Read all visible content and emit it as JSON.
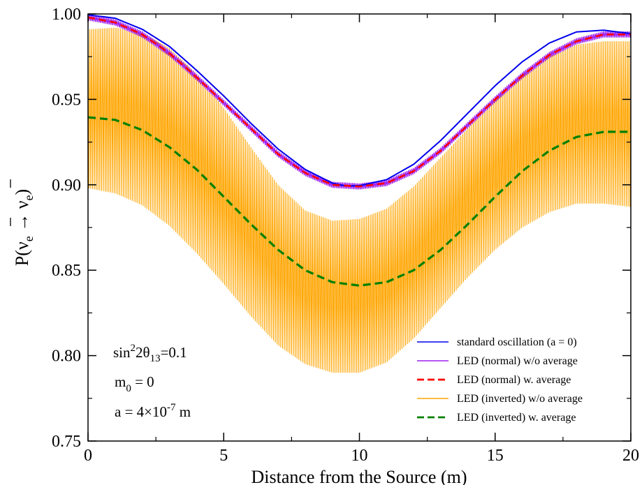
{
  "chart_data": {
    "type": "line",
    "title": "",
    "xlabel": "Distance from the Source (m)",
    "ylabel": {
      "text": "P(",
      "nu": "ν",
      "sub": "e",
      "arrow": " → ",
      "close": ")"
    },
    "xlim": [
      0,
      20
    ],
    "ylim": [
      0.75,
      1.0
    ],
    "x_ticks": [
      0,
      5,
      10,
      15,
      20
    ],
    "y_ticks": [
      0.75,
      0.8,
      0.85,
      0.9,
      0.95,
      1.0
    ],
    "x_tick_labels": [
      "0",
      "5",
      "10",
      "15",
      "20"
    ],
    "y_tick_labels": [
      "0.75",
      "0.80",
      "0.85",
      "0.90",
      "0.95",
      "1.00"
    ],
    "grid": false,
    "legend_position": "bottom-right",
    "series": [
      {
        "name": "standard oscillation (a = 0)",
        "color": "#0000ee",
        "style": "solid",
        "x": [
          0,
          1,
          2,
          3,
          4,
          5,
          6,
          7,
          8,
          9,
          9.5,
          10,
          11,
          12,
          13,
          14,
          15,
          16,
          17,
          18,
          19,
          20
        ],
        "y": [
          0.9995,
          0.9975,
          0.991,
          0.981,
          0.967,
          0.952,
          0.936,
          0.921,
          0.909,
          0.901,
          0.8993,
          0.8995,
          0.903,
          0.912,
          0.926,
          0.942,
          0.958,
          0.972,
          0.983,
          0.9895,
          0.9905,
          0.9885
        ]
      },
      {
        "name": "LED (normal) w/o average",
        "color": "#a020f0",
        "style": "solid",
        "x": [
          0,
          1,
          2,
          3,
          4,
          5,
          6,
          7,
          8,
          9,
          10,
          11,
          12,
          13,
          14,
          15,
          16,
          17,
          18,
          19,
          20
        ],
        "y": [
          0.998,
          0.995,
          0.988,
          0.977,
          0.963,
          0.948,
          0.933,
          0.918,
          0.907,
          0.9,
          0.899,
          0.901,
          0.908,
          0.92,
          0.935,
          0.95,
          0.964,
          0.976,
          0.984,
          0.988,
          0.988
        ]
      },
      {
        "name": "LED (normal) w. average",
        "color": "#ff0000",
        "style": "dashed",
        "x": [
          0,
          1,
          2,
          3,
          4,
          5,
          6,
          7,
          8,
          9,
          10,
          11,
          12,
          13,
          14,
          15,
          16,
          17,
          18,
          19,
          20
        ],
        "y": [
          0.998,
          0.995,
          0.988,
          0.977,
          0.963,
          0.948,
          0.933,
          0.918,
          0.907,
          0.9,
          0.899,
          0.901,
          0.908,
          0.92,
          0.935,
          0.95,
          0.964,
          0.976,
          0.984,
          0.988,
          0.988
        ]
      },
      {
        "name": "LED (inverted) w/o average",
        "color": "#ffa500",
        "style": "solid",
        "x": [
          0,
          1,
          2,
          3,
          4,
          5,
          6,
          7,
          8,
          9,
          10,
          11,
          12,
          13,
          14,
          15,
          16,
          17,
          18,
          19,
          20
        ],
        "y_max": [
          0.991,
          0.992,
          0.989,
          0.98,
          0.965,
          0.945,
          0.922,
          0.9,
          0.885,
          0.879,
          0.88,
          0.886,
          0.899,
          0.916,
          0.933,
          0.95,
          0.965,
          0.975,
          0.982,
          0.984,
          0.984
        ],
        "y_min": [
          0.898,
          0.895,
          0.888,
          0.876,
          0.86,
          0.842,
          0.823,
          0.806,
          0.795,
          0.79,
          0.79,
          0.796,
          0.81,
          0.828,
          0.846,
          0.862,
          0.875,
          0.884,
          0.889,
          0.889,
          0.887
        ]
      },
      {
        "name": "LED (inverted) w. average",
        "color": "#008000",
        "style": "dashed",
        "x": [
          0,
          1,
          2,
          3,
          4,
          5,
          6,
          7,
          8,
          9,
          10,
          11,
          12,
          13,
          14,
          15,
          16,
          17,
          18,
          19,
          20
        ],
        "y": [
          0.9395,
          0.938,
          0.932,
          0.922,
          0.909,
          0.893,
          0.877,
          0.862,
          0.85,
          0.843,
          0.841,
          0.843,
          0.85,
          0.862,
          0.877,
          0.893,
          0.908,
          0.92,
          0.928,
          0.931,
          0.931
        ]
      }
    ],
    "annotations": [
      {
        "id": "sin",
        "base": "sin",
        "sup": "2",
        "mid": "2θ",
        "sub": "13",
        "rest": "=0.1"
      },
      {
        "id": "m0",
        "base": "m",
        "sub": "0",
        "rest": " = 0"
      },
      {
        "id": "a",
        "base": "a = 4×10",
        "sup": "-7",
        "rest": " m"
      }
    ]
  }
}
